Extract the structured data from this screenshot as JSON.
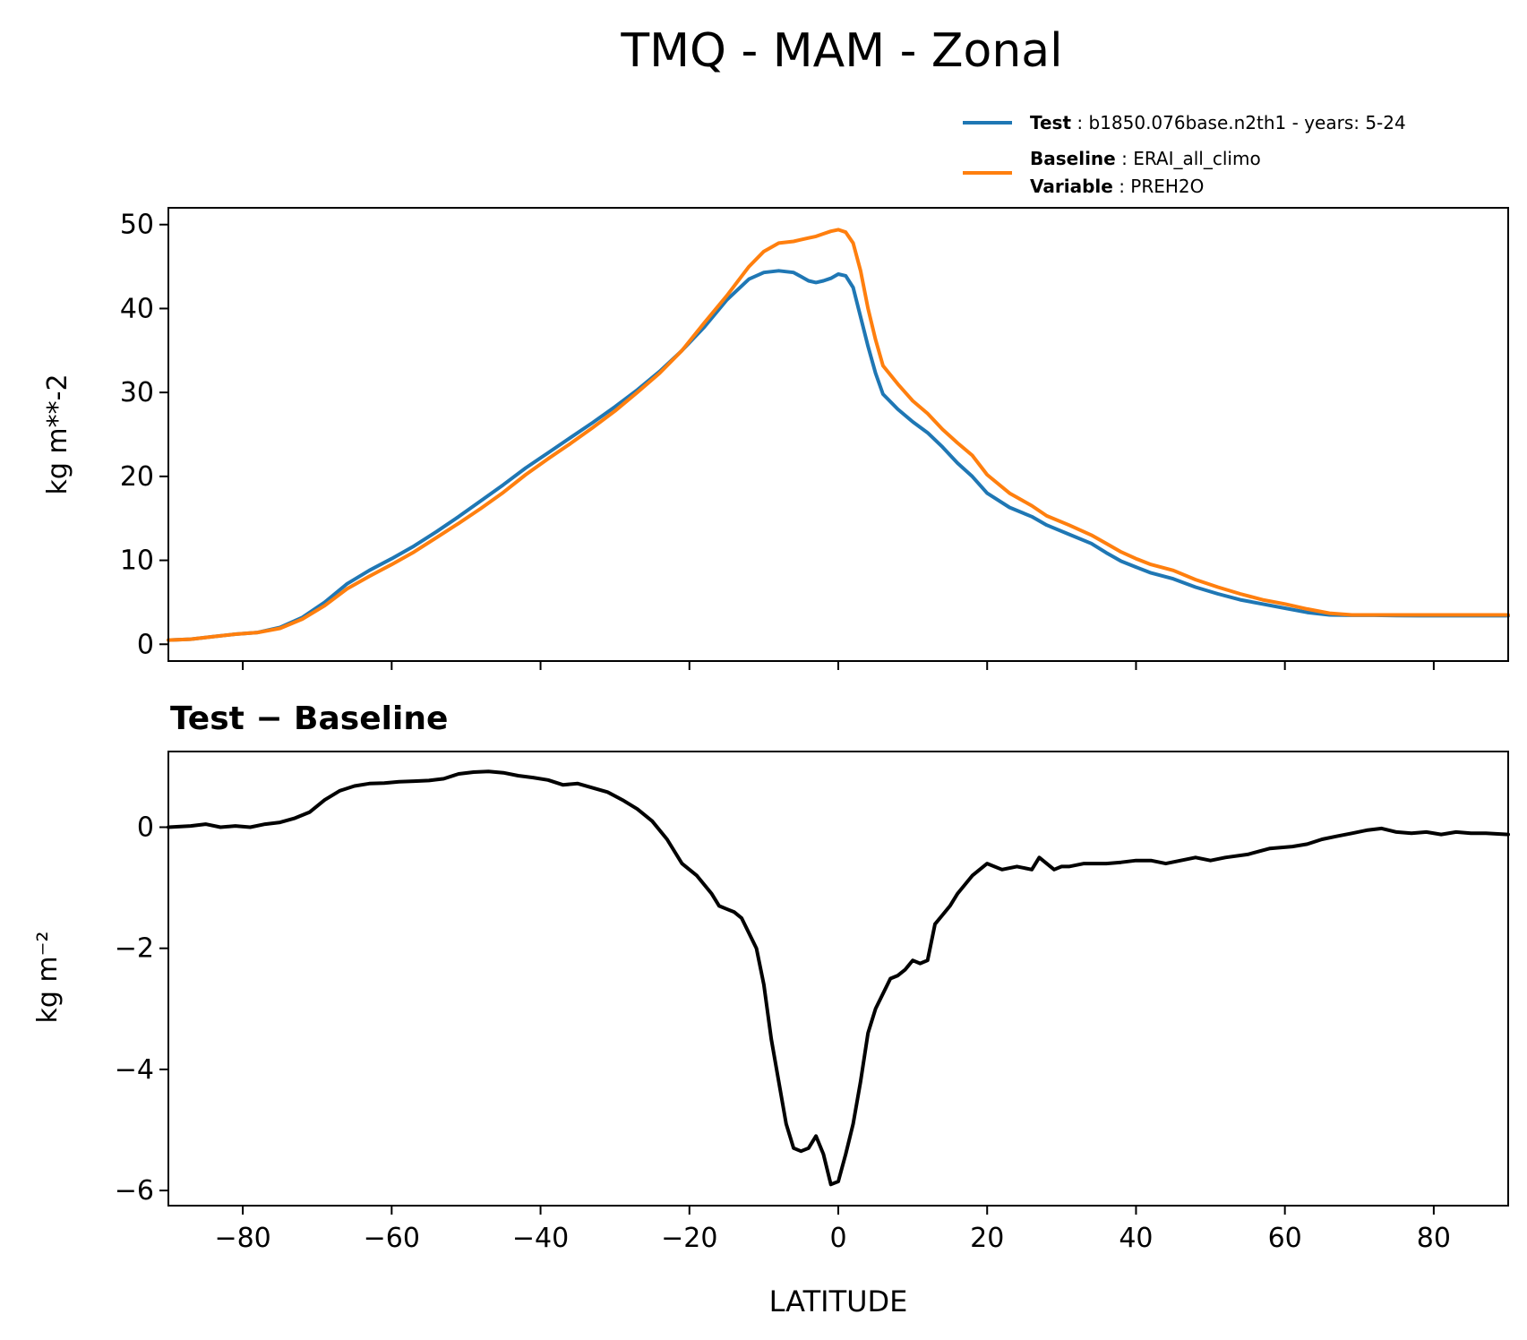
{
  "title": "TMQ - MAM - Zonal",
  "legend": {
    "test_key": "Test",
    "test_value": "b1850.076base.n2th1 - years: 5-24",
    "baseline_key": "Baseline",
    "baseline_value": "ERAI_all_climo",
    "variable_key": "Variable",
    "variable_value": "PREH2O"
  },
  "colors": {
    "test": "#1f77b4",
    "baseline": "#ff7f0e",
    "diff": "#000000"
  },
  "chart_data": [
    {
      "type": "line",
      "ylabel": "kg m**-2",
      "xlabel": "",
      "xlim": [
        -90,
        90
      ],
      "ylim": [
        -2,
        52
      ],
      "yticks": [
        0,
        10,
        20,
        30,
        40,
        50
      ],
      "xticks": [
        -80,
        -60,
        -40,
        -20,
        0,
        20,
        40,
        60,
        80
      ],
      "legend_position": "above-right",
      "grid": false,
      "x": [
        -90,
        -87,
        -84,
        -81,
        -78,
        -75,
        -72,
        -69,
        -66,
        -63,
        -60,
        -57,
        -54,
        -51,
        -48,
        -45,
        -42,
        -39,
        -36,
        -33,
        -30,
        -27,
        -24,
        -21,
        -18,
        -15,
        -12,
        -10,
        -8,
        -6,
        -5,
        -4,
        -3,
        -2,
        -1,
        0,
        1,
        2,
        3,
        4,
        5,
        6,
        8,
        10,
        12,
        14,
        16,
        18,
        20,
        23,
        26,
        28,
        31,
        34,
        36,
        38,
        40,
        42,
        45,
        48,
        51,
        54,
        57,
        60,
        63,
        66,
        69,
        72,
        75,
        78,
        81,
        84,
        87,
        90
      ],
      "series": [
        {
          "name": "Test",
          "color": "#1f77b4",
          "values": [
            0.5,
            0.6,
            0.9,
            1.2,
            1.4,
            2.0,
            3.2,
            5.0,
            7.2,
            8.8,
            10.2,
            11.7,
            13.4,
            15.2,
            17.1,
            19.0,
            21.0,
            22.8,
            24.6,
            26.4,
            28.3,
            30.3,
            32.5,
            35.0,
            37.8,
            41.0,
            43.5,
            44.3,
            44.5,
            44.3,
            43.8,
            43.3,
            43.1,
            43.3,
            43.6,
            44.1,
            43.9,
            42.5,
            39.0,
            35.5,
            32.3,
            29.8,
            28.0,
            26.5,
            25.2,
            23.5,
            21.6,
            20.0,
            18.0,
            16.3,
            15.2,
            14.2,
            13.1,
            12.0,
            10.9,
            9.9,
            9.2,
            8.5,
            7.8,
            6.8,
            6.0,
            5.3,
            4.8,
            4.3,
            3.8,
            3.5,
            3.45,
            3.45,
            3.42,
            3.4,
            3.4,
            3.4,
            3.4,
            3.4
          ]
        },
        {
          "name": "Baseline",
          "color": "#ff7f0e",
          "values": [
            0.5,
            0.6,
            0.9,
            1.2,
            1.4,
            1.9,
            3.0,
            4.6,
            6.6,
            8.1,
            9.5,
            11.0,
            12.7,
            14.4,
            16.2,
            18.1,
            20.2,
            22.1,
            23.9,
            25.8,
            27.8,
            30.0,
            32.3,
            35.0,
            38.3,
            41.5,
            45.0,
            46.8,
            47.8,
            48.0,
            48.2,
            48.4,
            48.6,
            48.9,
            49.2,
            49.4,
            49.1,
            47.8,
            44.5,
            40.0,
            36.3,
            33.2,
            31.0,
            29.0,
            27.5,
            25.6,
            24.0,
            22.5,
            20.2,
            18.0,
            16.5,
            15.3,
            14.2,
            13.0,
            12.0,
            11.0,
            10.2,
            9.5,
            8.8,
            7.7,
            6.8,
            6.0,
            5.3,
            4.8,
            4.2,
            3.7,
            3.5,
            3.5,
            3.5,
            3.5,
            3.5,
            3.5,
            3.5,
            3.5
          ]
        }
      ]
    },
    {
      "type": "line",
      "title": "Test − Baseline",
      "ylabel": "kg m⁻²",
      "xlabel": "LATITUDE",
      "xlim": [
        -90,
        90
      ],
      "ylim": [
        -6.25,
        1.25
      ],
      "yticks": [
        -6,
        -4,
        -2,
        0
      ],
      "ytick_labels": [
        "−6",
        "−4",
        "−2",
        "0"
      ],
      "xticks": [
        -80,
        -60,
        -40,
        -20,
        0,
        20,
        40,
        60,
        80
      ],
      "xtick_labels": [
        "−80",
        "−60",
        "−40",
        "−20",
        "0",
        "20",
        "40",
        "60",
        "80"
      ],
      "grid": false,
      "x": [
        -90,
        -87,
        -85,
        -83,
        -81,
        -79,
        -77,
        -75,
        -73,
        -71,
        -69,
        -67,
        -65,
        -63,
        -61,
        -59,
        -57,
        -55,
        -53,
        -51,
        -49,
        -47,
        -45,
        -43,
        -41,
        -39,
        -37,
        -35,
        -33,
        -31,
        -29,
        -27,
        -25,
        -23,
        -21,
        -19,
        -17,
        -16,
        -15,
        -14,
        -13,
        -11,
        -10,
        -9,
        -8,
        -7,
        -6,
        -5,
        -4,
        -3,
        -2,
        -1,
        0,
        1,
        2,
        3,
        4,
        5,
        6,
        7,
        8,
        9,
        10,
        11,
        12,
        13,
        14,
        15,
        16,
        18,
        20,
        22,
        24,
        26,
        27,
        28,
        29,
        30,
        31,
        33,
        35,
        36,
        38,
        40,
        42,
        44,
        46,
        48,
        50,
        52,
        55,
        58,
        61,
        63,
        65,
        67,
        69,
        71,
        73,
        75,
        77,
        79,
        81,
        83,
        85,
        87,
        90
      ],
      "series": [
        {
          "name": "Test − Baseline",
          "color": "#000000",
          "values": [
            0.0,
            0.02,
            0.05,
            0.0,
            0.02,
            0.0,
            0.05,
            0.08,
            0.15,
            0.25,
            0.45,
            0.6,
            0.68,
            0.72,
            0.73,
            0.75,
            0.76,
            0.77,
            0.8,
            0.88,
            0.91,
            0.92,
            0.9,
            0.85,
            0.82,
            0.78,
            0.7,
            0.72,
            0.65,
            0.58,
            0.45,
            0.3,
            0.1,
            -0.2,
            -0.6,
            -0.8,
            -1.1,
            -1.3,
            -1.35,
            -1.4,
            -1.5,
            -2.0,
            -2.6,
            -3.5,
            -4.2,
            -4.9,
            -5.3,
            -5.35,
            -5.3,
            -5.1,
            -5.4,
            -5.9,
            -5.85,
            -5.4,
            -4.9,
            -4.2,
            -3.4,
            -3.0,
            -2.75,
            -2.5,
            -2.45,
            -2.35,
            -2.2,
            -2.25,
            -2.2,
            -1.6,
            -1.45,
            -1.3,
            -1.1,
            -0.8,
            -0.6,
            -0.7,
            -0.65,
            -0.7,
            -0.5,
            -0.6,
            -0.7,
            -0.65,
            -0.65,
            -0.6,
            -0.6,
            -0.6,
            -0.58,
            -0.55,
            -0.55,
            -0.6,
            -0.55,
            -0.5,
            -0.55,
            -0.5,
            -0.45,
            -0.35,
            -0.32,
            -0.28,
            -0.2,
            -0.15,
            -0.1,
            -0.05,
            -0.02,
            -0.08,
            -0.1,
            -0.08,
            -0.12,
            -0.08,
            -0.1,
            -0.1,
            -0.12
          ]
        }
      ]
    }
  ]
}
